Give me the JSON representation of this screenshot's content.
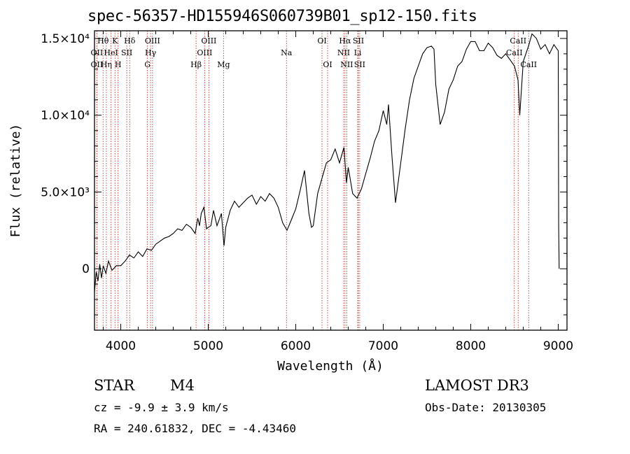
{
  "chart_data": {
    "type": "line",
    "title": "spec-56357-HD155946S060739B01_sp12-150.fits",
    "xlabel": "Wavelength (Å)",
    "ylabel": "Flux (relative)",
    "xlim": [
      3700,
      9100
    ],
    "ylim": [
      -4000,
      15500
    ],
    "x_ticks": [
      4000,
      5000,
      6000,
      7000,
      8000,
      9000
    ],
    "x_tick_labels": [
      "4000",
      "5000",
      "6000",
      "7000",
      "8000",
      "9000"
    ],
    "y_ticks": [
      0,
      5000,
      10000,
      15000
    ],
    "y_tick_labels": [
      "0",
      "5.0×10³",
      "1.0×10⁴",
      "1.5×10⁴"
    ],
    "series": [
      {
        "name": "flux",
        "x": [
          3700,
          3720,
          3740,
          3760,
          3780,
          3800,
          3830,
          3860,
          3900,
          3950,
          4000,
          4050,
          4100,
          4150,
          4200,
          4250,
          4300,
          4350,
          4400,
          4450,
          4500,
          4550,
          4600,
          4650,
          4700,
          4750,
          4800,
          4850,
          4880,
          4900,
          4920,
          4950,
          4980,
          5000,
          5030,
          5060,
          5100,
          5150,
          5180,
          5200,
          5250,
          5300,
          5350,
          5400,
          5450,
          5500,
          5550,
          5600,
          5650,
          5700,
          5750,
          5800,
          5850,
          5900,
          5950,
          6000,
          6050,
          6100,
          6150,
          6180,
          6200,
          6250,
          6300,
          6350,
          6400,
          6450,
          6500,
          6550,
          6580,
          6600,
          6650,
          6700,
          6750,
          6800,
          6850,
          6900,
          6950,
          7000,
          7040,
          7060,
          7100,
          7140,
          7200,
          7250,
          7300,
          7350,
          7400,
          7450,
          7500,
          7550,
          7580,
          7600,
          7650,
          7700,
          7750,
          7800,
          7850,
          7900,
          7950,
          8000,
          8050,
          8100,
          8150,
          8200,
          8250,
          8300,
          8350,
          8400,
          8450,
          8500,
          8540,
          8560,
          8600,
          8660,
          8700,
          8750,
          8800,
          8850,
          8900,
          8950,
          9000,
          9005,
          9010
        ],
        "y": [
          -1500,
          -200,
          -800,
          300,
          -600,
          200,
          -300,
          500,
          -100,
          200,
          200,
          500,
          900,
          700,
          1100,
          800,
          1300,
          1200,
          1600,
          1800,
          2000,
          2100,
          2300,
          2600,
          2500,
          2900,
          2700,
          2300,
          3300,
          2800,
          3600,
          4000,
          2600,
          2700,
          2800,
          3800,
          2800,
          3600,
          1500,
          2700,
          3800,
          4400,
          4000,
          4300,
          4600,
          4800,
          4200,
          4700,
          4400,
          4900,
          4600,
          4000,
          3000,
          2500,
          3200,
          3900,
          5100,
          6400,
          3600,
          2700,
          2800,
          4900,
          5900,
          6900,
          7100,
          7800,
          6900,
          7900,
          5600,
          6600,
          4900,
          4600,
          5200,
          6200,
          7200,
          8300,
          9000,
          10300,
          9400,
          10700,
          7300,
          4300,
          6900,
          9100,
          11000,
          12400,
          13200,
          14000,
          14400,
          14500,
          14300,
          12000,
          9400,
          10200,
          11700,
          12300,
          13200,
          13500,
          14300,
          14800,
          14800,
          14200,
          14200,
          14700,
          14400,
          13900,
          13700,
          14000,
          13600,
          13200,
          12300,
          10000,
          13500,
          14500,
          15300,
          15000,
          14300,
          14600,
          14000,
          14600,
          14200,
          2700,
          0
        ]
      }
    ],
    "line_markers": [
      {
        "label": "Hθ",
        "x": 3798,
        "row": 1
      },
      {
        "label": "K",
        "x": 3934,
        "row": 1
      },
      {
        "label": "Hδ",
        "x": 4102,
        "row": 1
      },
      {
        "label": "OII",
        "x": 3727,
        "row": 2
      },
      {
        "label": "HeI",
        "x": 3889,
        "row": 2
      },
      {
        "label": "SII",
        "x": 4069,
        "row": 2
      },
      {
        "label": "OII",
        "x": 3727,
        "row": 3
      },
      {
        "label": "Hη",
        "x": 3835,
        "row": 3
      },
      {
        "label": "H",
        "x": 3969,
        "row": 3
      },
      {
        "label": "OIII",
        "x": 4363,
        "row": 1
      },
      {
        "label": "Hγ",
        "x": 4341,
        "row": 2
      },
      {
        "label": "G",
        "x": 4305,
        "row": 3
      },
      {
        "label": "Hβ",
        "x": 4861,
        "row": 3
      },
      {
        "label": "OIII",
        "x": 5007,
        "row": 1
      },
      {
        "label": "OIII",
        "x": 4959,
        "row": 2
      },
      {
        "label": "Mg",
        "x": 5175,
        "row": 3
      },
      {
        "label": "Na",
        "x": 5894,
        "row": 2
      },
      {
        "label": "OI",
        "x": 6300,
        "row": 1
      },
      {
        "label": "OI",
        "x": 6364,
        "row": 3
      },
      {
        "label": "Hα",
        "x": 6563,
        "row": 1
      },
      {
        "label": "SII",
        "x": 6716,
        "row": 1
      },
      {
        "label": "NII",
        "x": 6548,
        "row": 2
      },
      {
        "label": "Li",
        "x": 6708,
        "row": 2
      },
      {
        "label": "NII",
        "x": 6583,
        "row": 3
      },
      {
        "label": "SII",
        "x": 6731,
        "row": 3
      },
      {
        "label": "CaII",
        "x": 8542,
        "row": 1
      },
      {
        "label": "CaII",
        "x": 8498,
        "row": 2
      },
      {
        "label": "CaII",
        "x": 8662,
        "row": 3
      }
    ]
  },
  "info": {
    "object_class": "STAR",
    "subclass": "M4",
    "survey": "LAMOST DR3",
    "redshift": "cz = -9.9 ± 3.9 km/s",
    "obs_date": "Obs-Date: 20130305",
    "coords": "RA = 240.61832, DEC =  -4.43460"
  },
  "colors": {
    "line": "#000000",
    "marker": "#c0392b",
    "axis": "#000000"
  }
}
